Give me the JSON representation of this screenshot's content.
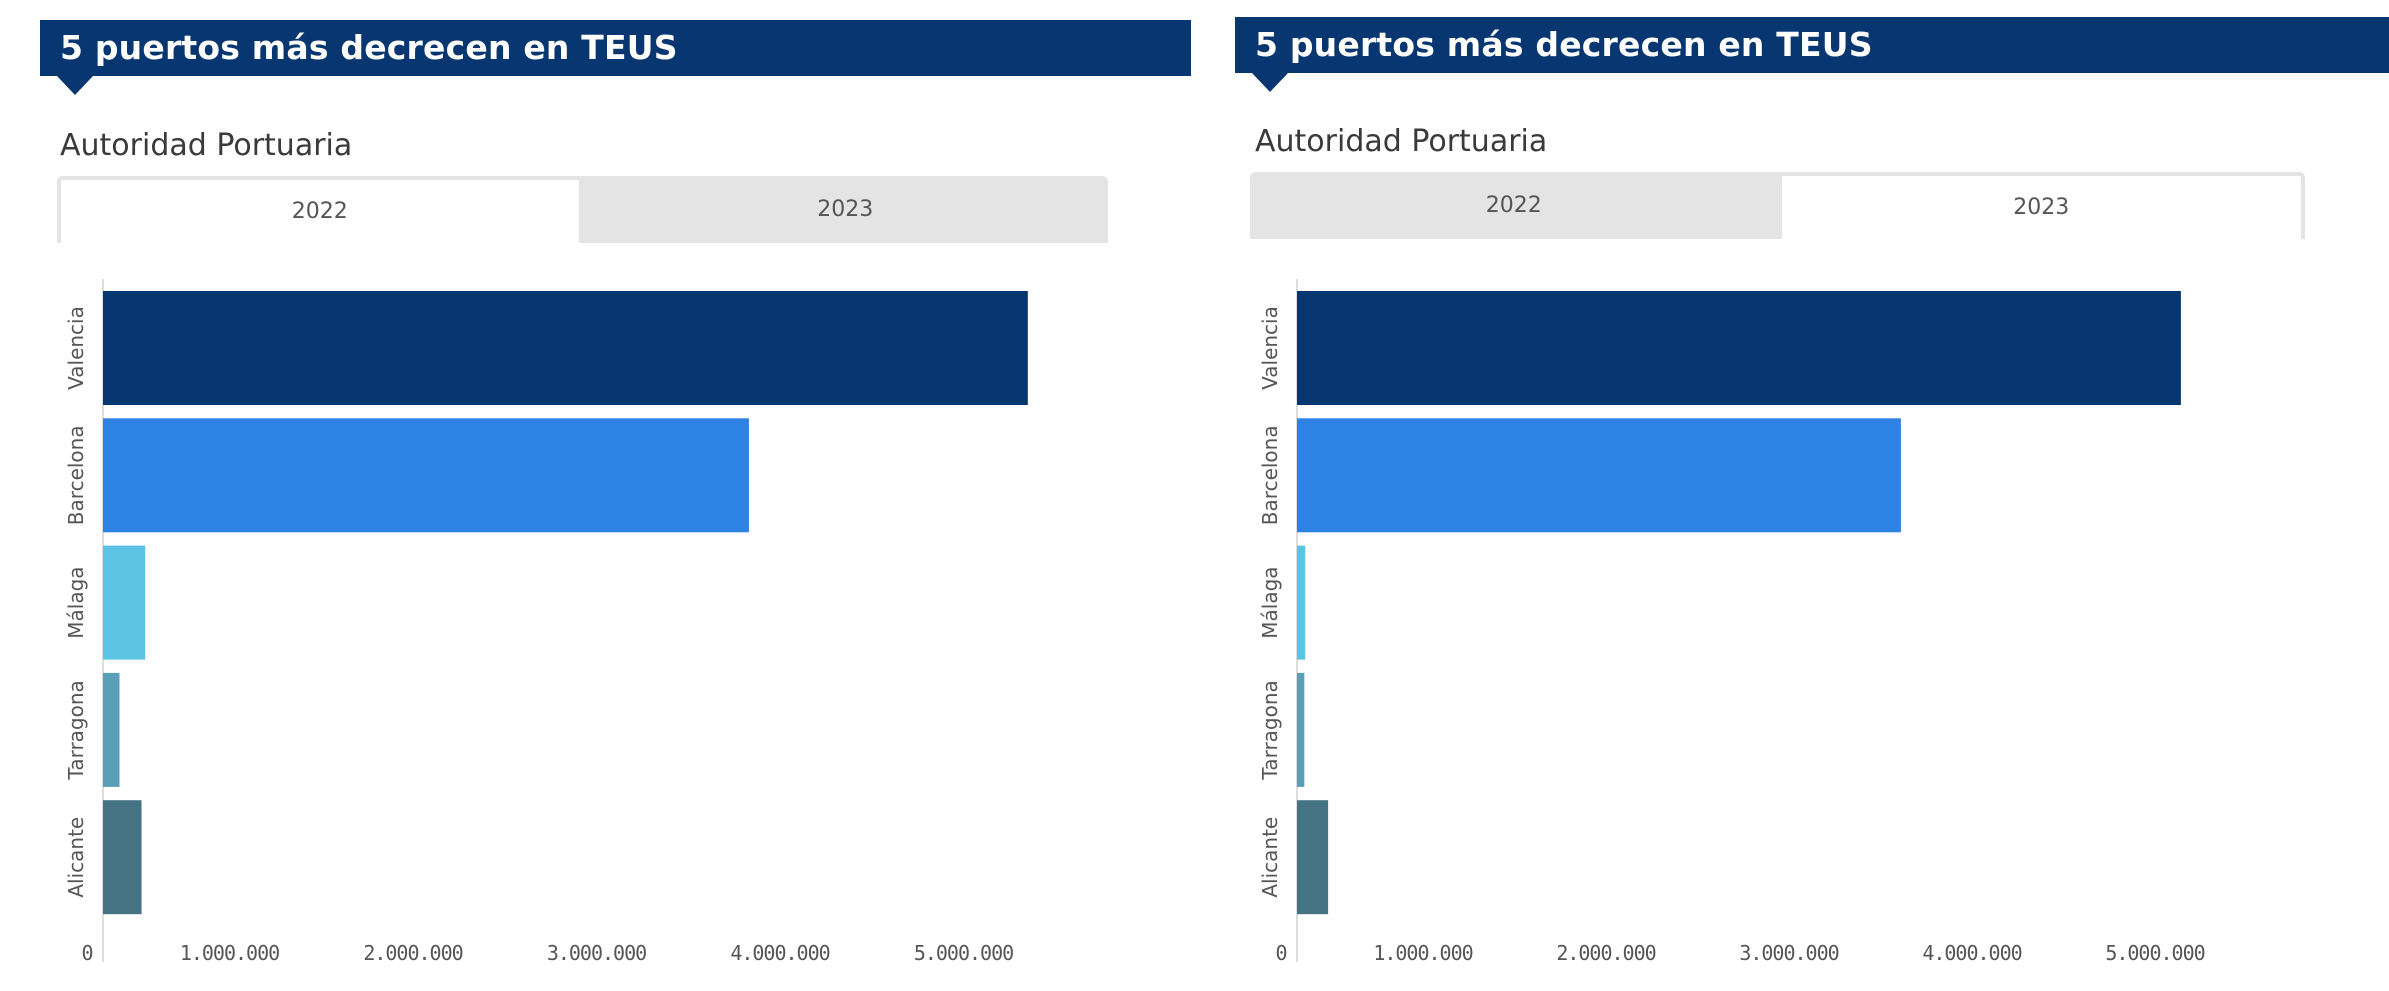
{
  "panels": [
    {
      "header": {
        "title": "5 puertos más decrecen en TEUS"
      },
      "section_label": "Autoridad Portuaria",
      "tabs": [
        {
          "label": "2022",
          "active": true
        },
        {
          "label": "2023",
          "active": false
        }
      ]
    },
    {
      "header": {
        "title": "5 puertos más decrecen en TEUS"
      },
      "section_label": "Autoridad Portuaria",
      "tabs": [
        {
          "label": "2022",
          "active": false
        },
        {
          "label": "2023",
          "active": true
        }
      ]
    }
  ],
  "chart_data": [
    {
      "type": "bar",
      "orientation": "horizontal",
      "title": "5 puertos más decrecen en TEUS",
      "subtitle": "Autoridad Portuaria — 2022",
      "categories": [
        "Valencia",
        "Barcelona",
        "Málaga",
        "Tarragona",
        "Alicante"
      ],
      "values": [
        5040000,
        3520000,
        230000,
        90000,
        210000
      ],
      "colors": [
        "#073670",
        "#2E82E3",
        "#5BC3E3",
        "#5A9FB8",
        "#467383"
      ],
      "xlabel": "",
      "ylabel": "",
      "xlim": [
        0,
        5500000
      ],
      "x_ticks": [
        0,
        1000000,
        2000000,
        3000000,
        4000000,
        5000000
      ],
      "x_tick_labels": [
        "0",
        "1.000.000",
        "2.000.000",
        "3.000.000",
        "4.000.000",
        "5.000.000"
      ],
      "grid": false,
      "legend": "none"
    },
    {
      "type": "bar",
      "orientation": "horizontal",
      "title": "5 puertos más decrecen en TEUS",
      "subtitle": "Autoridad Portuaria — 2023",
      "categories": [
        "Valencia",
        "Barcelona",
        "Málaga",
        "Tarragona",
        "Alicante"
      ],
      "values": [
        4830000,
        3300000,
        45000,
        40000,
        170000
      ],
      "colors": [
        "#073670",
        "#2E82E3",
        "#5BC3E3",
        "#5A9FB8",
        "#467383"
      ],
      "xlabel": "",
      "ylabel": "",
      "xlim": [
        0,
        5500000
      ],
      "x_ticks": [
        0,
        1000000,
        2000000,
        3000000,
        4000000,
        5000000
      ],
      "x_tick_labels": [
        "0",
        "1.000.000",
        "2.000.000",
        "3.000.000",
        "4.000.000",
        "5.000.000"
      ],
      "grid": false,
      "legend": "none"
    }
  ]
}
